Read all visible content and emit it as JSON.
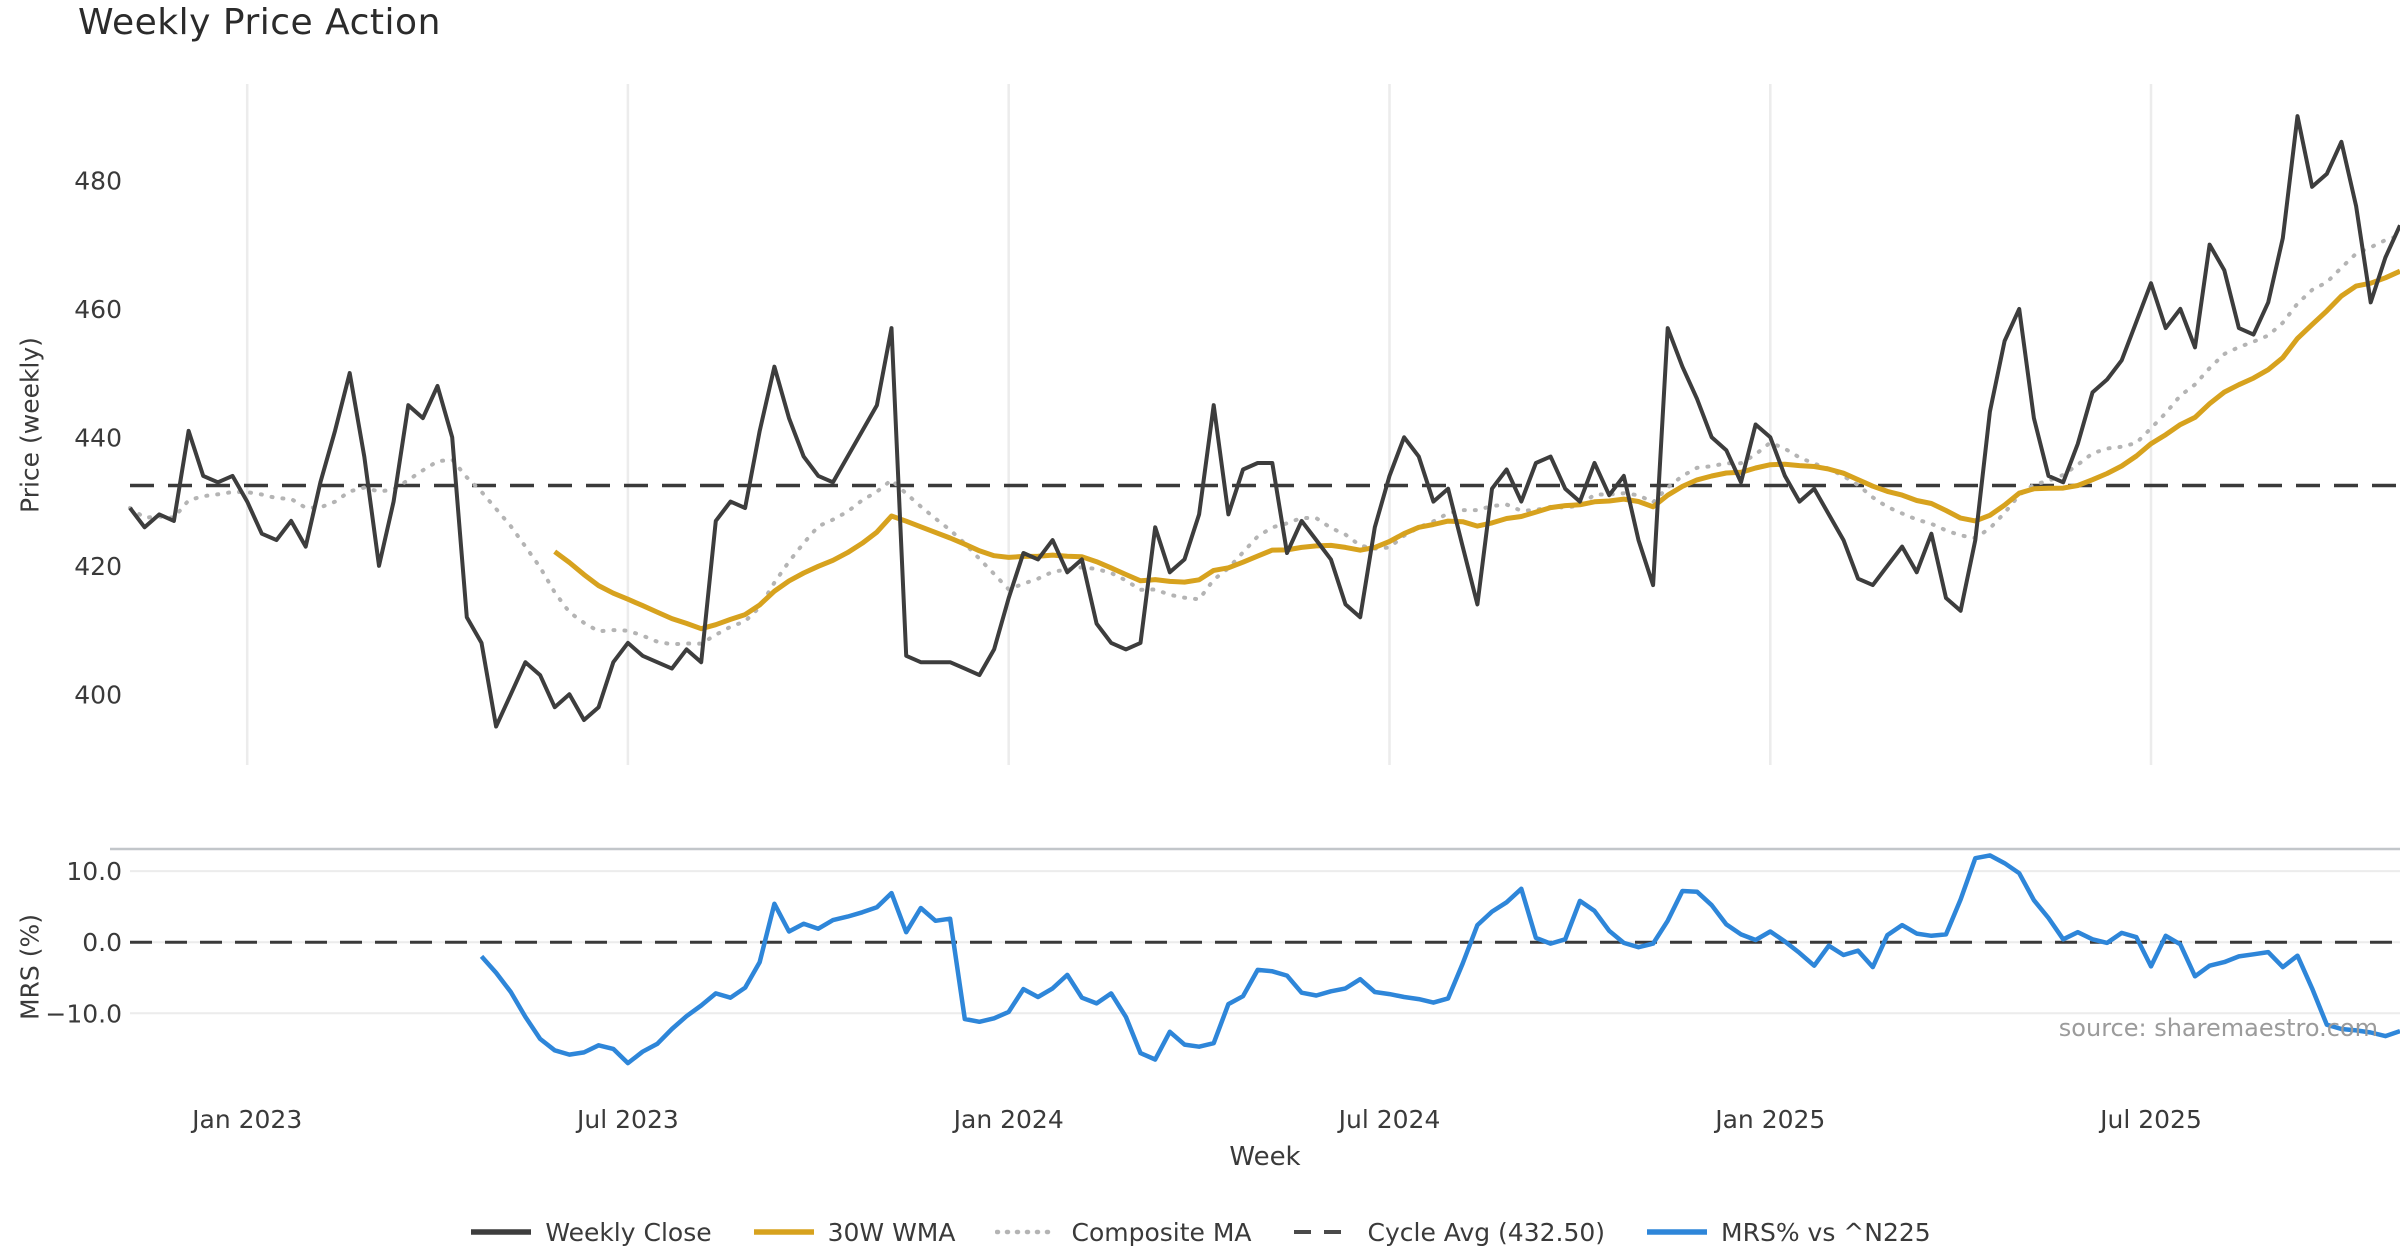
{
  "page": {
    "title": "Weekly Price Action",
    "source": "source: sharemaestro.com"
  },
  "legend": {
    "items": [
      {
        "label": "Weekly Close",
        "color": "#3d3d3d",
        "style": "solid"
      },
      {
        "label": "30W WMA",
        "color": "#d7a21e",
        "style": "solid"
      },
      {
        "label": "Composite MA",
        "color": "#b4b4b4",
        "style": "dotted"
      },
      {
        "label": "Cycle Avg (432.50)",
        "color": "#4a4a4a",
        "style": "dashed"
      },
      {
        "label": "MRS% vs ^N225",
        "color": "#2e86d9",
        "style": "solid"
      }
    ]
  },
  "chart_data": [
    {
      "type": "line",
      "panel": "price",
      "title": "Weekly Price Action",
      "ylabel": "Price (weekly)",
      "xlabel": "Week",
      "ylim": [
        389,
        495
      ],
      "yticks": [
        {
          "v": 400,
          "label": "400"
        },
        {
          "v": 420,
          "label": "420"
        },
        {
          "v": 440,
          "label": "440"
        },
        {
          "v": 460,
          "label": "460"
        },
        {
          "v": 480,
          "label": "480"
        }
      ],
      "grid": "vertical-only",
      "x_start_date": "2022-11-07",
      "x_freq_days": 7,
      "xticks": [
        {
          "week": 8,
          "label": "Jan 2023"
        },
        {
          "week": 34,
          "label": "Jul 2023"
        },
        {
          "week": 60,
          "label": "Jan 2024"
        },
        {
          "week": 86,
          "label": "Jul 2024"
        },
        {
          "week": 112,
          "label": "Jan 2025"
        },
        {
          "week": 138,
          "label": "Jul 2025"
        }
      ],
      "series": [
        {
          "name": "Weekly Close",
          "color": "#3d3d3d",
          "kind": "data",
          "values": [
            429,
            426,
            428,
            427,
            441,
            434,
            433,
            434,
            430,
            425,
            424,
            427,
            423,
            433,
            441,
            450,
            437,
            420,
            430,
            445,
            443,
            448,
            440,
            412,
            408,
            395,
            400,
            405,
            403,
            398,
            400,
            396,
            398,
            405,
            408,
            406,
            405,
            404,
            407,
            405,
            427,
            430,
            429,
            441,
            451,
            443,
            437,
            434,
            433,
            437,
            441,
            445,
            457,
            406,
            405,
            405,
            405,
            404,
            403,
            407,
            415,
            422,
            421,
            424,
            419,
            421,
            411,
            408,
            407,
            408,
            426,
            419,
            421,
            428,
            445,
            428,
            435,
            436,
            436,
            422,
            427,
            424,
            421,
            414,
            412,
            426,
            434,
            440,
            437,
            430,
            432,
            423,
            414,
            432,
            435,
            430,
            436,
            437,
            432,
            430,
            436,
            431,
            434,
            424,
            417,
            457,
            451,
            446,
            440,
            438,
            433,
            442,
            440,
            434,
            430,
            432,
            428,
            424,
            418,
            417,
            420,
            423,
            419,
            425,
            415,
            413,
            424,
            444,
            455,
            460,
            443,
            434,
            433,
            439,
            447,
            449,
            452,
            458,
            464,
            457,
            460,
            454,
            470,
            466,
            457,
            456,
            461,
            471,
            490,
            479,
            481,
            486,
            476,
            461,
            468,
            473
          ]
        },
        {
          "name": "30W WMA",
          "color": "#d7a21e",
          "kind": "wma",
          "window": 30
        },
        {
          "name": "Composite MA",
          "color": "#b4b4b4",
          "kind": "composite",
          "windows": [
            8,
            21
          ],
          "style": "dotted"
        },
        {
          "name": "Cycle Avg (432.50)",
          "color": "#3a3a3a",
          "kind": "hline",
          "value": 432.5,
          "style": "dashed"
        }
      ]
    },
    {
      "type": "line",
      "panel": "mrs",
      "ylabel": "MRS (%)",
      "ylim": [
        -20.5,
        13.1
      ],
      "yticks": [
        {
          "v": 10,
          "label": "10.0"
        },
        {
          "v": 0,
          "label": "0.0"
        },
        {
          "v": -10,
          "label": "−10.0"
        }
      ],
      "zero_line": {
        "value": 0,
        "style": "dashed",
        "color": "#3a3a3a"
      },
      "series": [
        {
          "name": "MRS% vs ^N225",
          "color": "#2e86d9",
          "kind": "data",
          "start_week": 24,
          "values": [
            -2.0,
            -4.3,
            -7.0,
            -10.5,
            -13.6,
            -15.2,
            -15.8,
            -15.5,
            -14.5,
            -15.0,
            -17.0,
            -15.4,
            -14.3,
            -12.2,
            -10.4,
            -8.9,
            -7.2,
            -7.8,
            -6.4,
            -2.8,
            5.4,
            1.5,
            2.6,
            1.9,
            3.1,
            3.6,
            4.2,
            4.9,
            6.9,
            1.4,
            4.8,
            3.0,
            3.3,
            -10.8,
            -11.2,
            -10.7,
            -9.8,
            -6.6,
            -7.7,
            -6.5,
            -4.6,
            -7.8,
            -8.6,
            -7.2,
            -10.5,
            -15.6,
            -16.5,
            -12.6,
            -14.4,
            -14.7,
            -14.2,
            -8.7,
            -7.6,
            -3.9,
            -4.1,
            -4.7,
            -7.1,
            -7.5,
            -6.9,
            -6.5,
            -5.2,
            -7.0,
            -7.3,
            -7.7,
            -8.0,
            -8.5,
            -7.9,
            -3.0,
            2.4,
            4.3,
            5.6,
            7.5,
            0.6,
            -0.2,
            0.4,
            5.8,
            4.4,
            1.6,
            -0.1,
            -0.7,
            -0.2,
            3.0,
            7.2,
            7.1,
            5.2,
            2.5,
            1.1,
            0.3,
            1.5,
            0.1,
            -1.5,
            -3.3,
            -0.5,
            -1.8,
            -1.2,
            -3.5,
            1.0,
            2.4,
            1.2,
            0.9,
            1.1,
            6.0,
            11.8,
            12.2,
            11.1,
            9.7,
            5.9,
            3.4,
            0.4,
            1.4,
            0.4,
            -0.1,
            1.3,
            0.7,
            -3.4,
            0.9,
            -0.3,
            -4.8,
            -3.3,
            -2.8,
            -2.0,
            -1.7,
            -1.4,
            -3.5,
            -1.9,
            -6.5,
            -11.6,
            -12.2,
            -12.4,
            -12.7,
            -13.2,
            -12.5
          ]
        }
      ]
    }
  ]
}
